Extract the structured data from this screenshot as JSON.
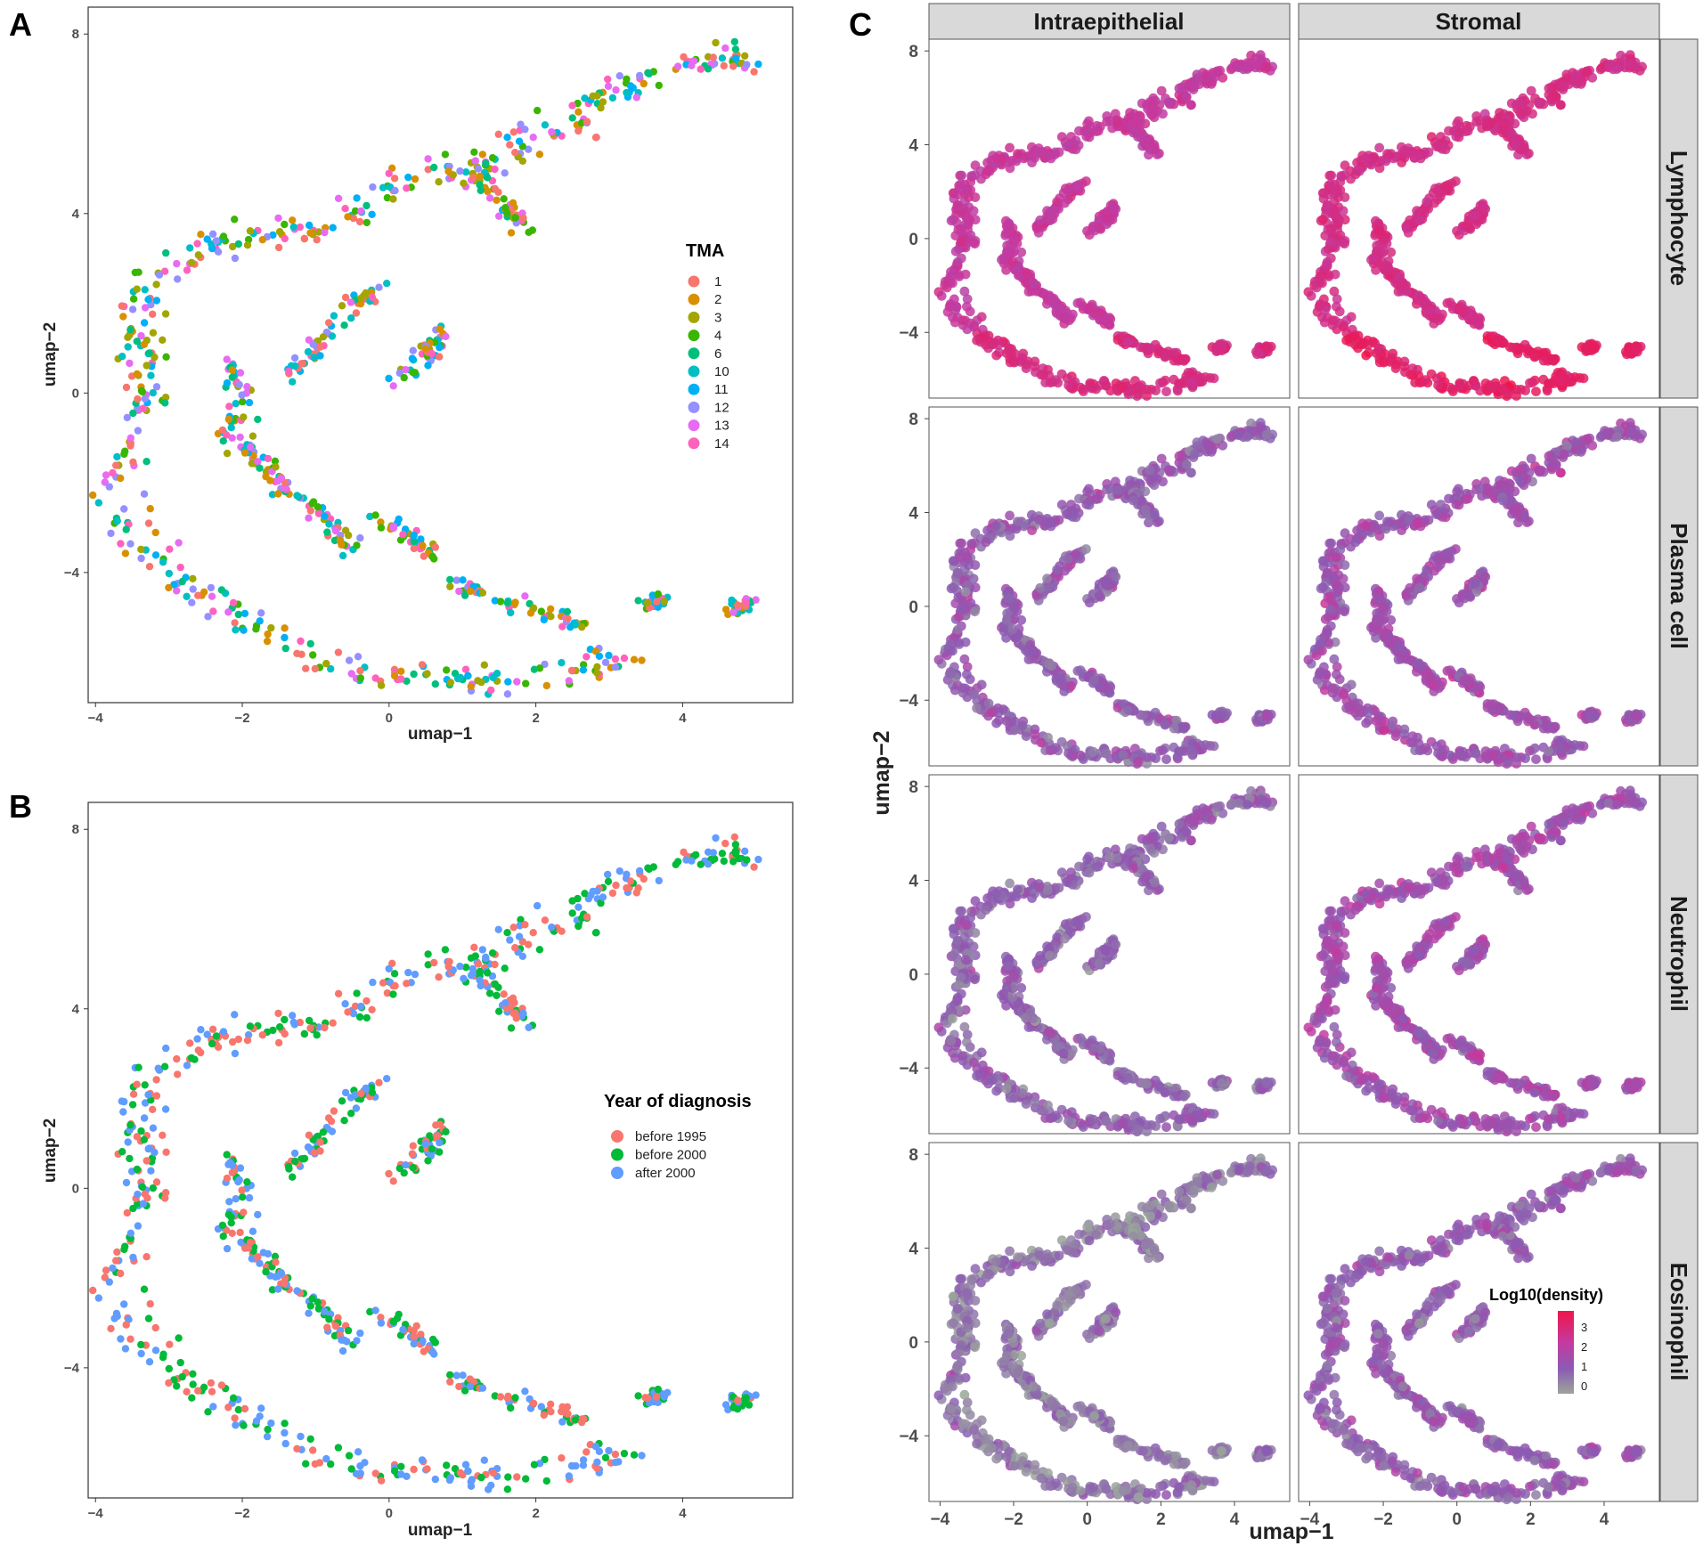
{
  "colors": {
    "tma": [
      "#F8766D",
      "#D89000",
      "#A3A500",
      "#39B600",
      "#00BF7D",
      "#00BFC4",
      "#00B0F6",
      "#9590FF",
      "#E76BF3",
      "#FF62BC"
    ],
    "year": [
      "#F8766D",
      "#00BA38",
      "#619CFF"
    ],
    "density_scale": [
      "#9aa69a",
      "#8b5bb3",
      "#c43aa0",
      "#f0144a"
    ]
  },
  "figure": {
    "panel_letters": [
      "A",
      "B",
      "C"
    ]
  },
  "chart_data": [
    {
      "id": "A",
      "type": "scatter",
      "title": "",
      "xlabel": "umap−1",
      "ylabel": "umap−2",
      "xlim": [
        -4.1,
        5.5
      ],
      "ylim": [
        -6.9,
        8.6
      ],
      "xticks": [
        -4,
        -2,
        0,
        2,
        4
      ],
      "xtick_labels": [
        "−4",
        "−2",
        "0",
        "2",
        "4"
      ],
      "yticks": [
        -4,
        0,
        4,
        8
      ],
      "ytick_labels": [
        "−4",
        "0",
        "4",
        "8"
      ],
      "grid": false,
      "legend": {
        "title": "TMA",
        "position": "right",
        "entries": [
          "1",
          "2",
          "3",
          "4",
          "6",
          "10",
          "11",
          "12",
          "13",
          "14"
        ]
      },
      "series_note": "approximately 650 points along a C-shaped manifold, colored by TMA group"
    },
    {
      "id": "B",
      "type": "scatter",
      "title": "",
      "xlabel": "umap−1",
      "ylabel": "umap−2",
      "xlim": [
        -4.1,
        5.5
      ],
      "ylim": [
        -6.9,
        8.6
      ],
      "xticks": [
        -4,
        -2,
        0,
        2,
        4
      ],
      "xtick_labels": [
        "−4",
        "−2",
        "0",
        "2",
        "4"
      ],
      "yticks": [
        -4,
        0,
        4,
        8
      ],
      "ytick_labels": [
        "−4",
        "0",
        "4",
        "8"
      ],
      "grid": false,
      "legend": {
        "title": "Year of diagnosis",
        "position": "right",
        "entries": [
          "before 1995",
          "before 2000",
          "after 2000"
        ]
      },
      "series_note": "same embedding as A, colored by year of diagnosis"
    },
    {
      "id": "C",
      "type": "scatter",
      "title": "",
      "xlabel": "umap−1",
      "ylabel": "umap−2",
      "xlim": [
        -4.3,
        5.5
      ],
      "ylim": [
        -6.8,
        8.5
      ],
      "xticks": [
        -4,
        -2,
        0,
        2,
        4
      ],
      "xtick_labels": [
        "−4",
        "−2",
        "0",
        "2",
        "4"
      ],
      "yticks": [
        -4,
        0,
        4,
        8
      ],
      "ytick_labels": [
        "−4",
        "0",
        "4",
        "8"
      ],
      "grid": false,
      "facet_columns": [
        "Intraepithelial",
        "Stromal"
      ],
      "facet_rows": [
        "Lymphocyte",
        "Plasma cell",
        "Neutrophil",
        "Eosinophil"
      ],
      "facet_mean_density": [
        [
          2.2,
          2.6
        ],
        [
          1.1,
          1.4
        ],
        [
          1.0,
          1.5
        ],
        [
          0.6,
          1.1
        ]
      ],
      "legend": {
        "title": "Log10(density)",
        "position": "bottom-right of last facet",
        "breaks": [
          "3",
          "2",
          "1",
          "0"
        ],
        "range": [
          0,
          3.5
        ]
      }
    }
  ]
}
